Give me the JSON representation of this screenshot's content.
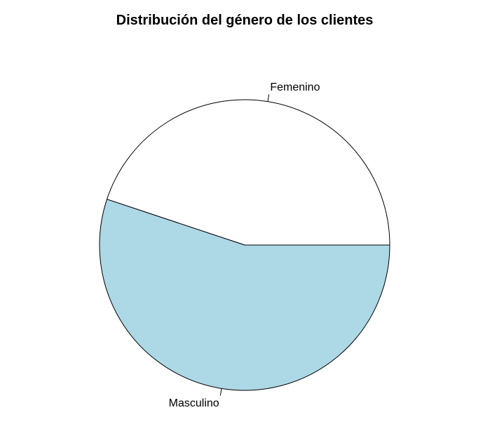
{
  "chart_data": {
    "type": "pie",
    "title": "Distribución del género de los clientes",
    "categories": [
      "Femenino",
      "Masculino"
    ],
    "values": [
      44.9,
      55.1
    ],
    "colors": [
      "#ffffff",
      "#add8e6"
    ],
    "direction": "counterclockwise",
    "start_angle_deg": 0,
    "border_color": "#000000"
  }
}
